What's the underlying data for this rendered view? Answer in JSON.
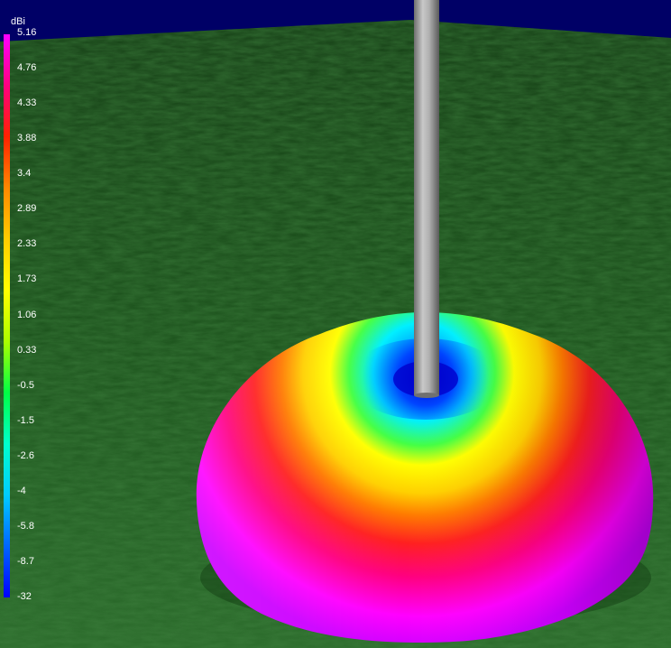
{
  "legend": {
    "unit": "dBi",
    "ticks": [
      "5.16",
      "4.76",
      "4.33",
      "3.88",
      "3.4",
      "2.89",
      "2.33",
      "1.73",
      "1.06",
      "0.33",
      "-0.5",
      "-1.5",
      "-2.6",
      "-4",
      "-5.8",
      "-8.7",
      "-32"
    ],
    "gradient_colors": [
      "#ff00ff",
      "#ff0080",
      "#ff2200",
      "#ff8800",
      "#ffcc00",
      "#ffff00",
      "#aaff00",
      "#00ff44",
      "#00ffcc",
      "#00ccff",
      "#0066ff",
      "#0000ff"
    ]
  },
  "scene": {
    "sky_color": "#000066",
    "ground_color": "#1f5a1f",
    "mast_color": "#a0a0a0",
    "pattern_colors": {
      "top": "#0033ff",
      "inner": "#00e0ff",
      "middle": "#ffff00",
      "outer": "#ff2a1a",
      "bottom": "#ff00ff"
    }
  }
}
